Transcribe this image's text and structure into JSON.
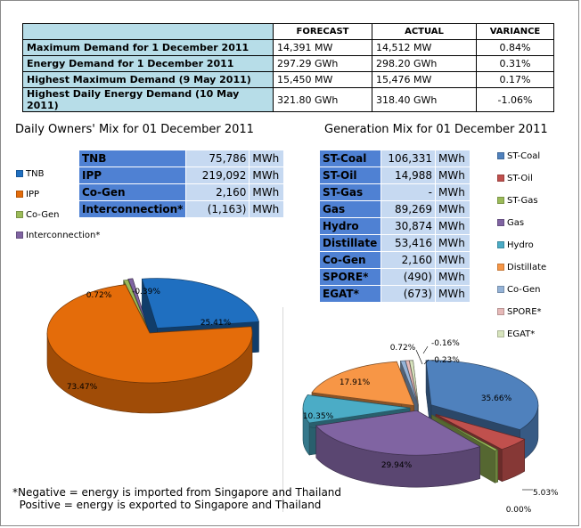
{
  "summary": {
    "headers": [
      "",
      "FORECAST",
      "ACTUAL",
      "VARIANCE"
    ],
    "rows": [
      {
        "label": "Maximum Demand for 1 December 2011",
        "forecast": "14,391  MW",
        "actual": "14,512  MW",
        "variance": "0.84%"
      },
      {
        "label": "Energy Demand for 1 December 2011",
        "forecast": "297.29  GWh",
        "actual": "298.20  GWh",
        "variance": "0.31%"
      },
      {
        "label": "Highest Maximum Demand (9 May 2011)",
        "forecast": "15,450  MW",
        "actual": "15,476  MW",
        "variance": "0.17%"
      },
      {
        "label": "Highest Daily Energy Demand (10 May 2011)",
        "forecast": "321.80  GWh",
        "actual": "318.40  GWh",
        "variance": "-1.06%"
      }
    ]
  },
  "owners": {
    "title": "Daily Owners' Mix for 01 December 2011",
    "rows": [
      {
        "name": "TNB",
        "value": "75,786",
        "unit": "MWh"
      },
      {
        "name": "IPP",
        "value": "219,092",
        "unit": "MWh"
      },
      {
        "name": "Co-Gen",
        "value": "2,160",
        "unit": "MWh"
      },
      {
        "name": "Interconnection*",
        "value": "(1,163)",
        "unit": "MWh"
      }
    ]
  },
  "generation": {
    "title": "Generation Mix for 01 December 2011",
    "rows": [
      {
        "name": "ST-Coal",
        "value": "106,331",
        "unit": "MWh"
      },
      {
        "name": "ST-Oil",
        "value": "14,988",
        "unit": "MWh"
      },
      {
        "name": "ST-Gas",
        "value": "-",
        "unit": "MWh"
      },
      {
        "name": "Gas",
        "value": "89,269",
        "unit": "MWh"
      },
      {
        "name": "Hydro",
        "value": "30,874",
        "unit": "MWh"
      },
      {
        "name": "Distillate",
        "value": "53,416",
        "unit": "MWh"
      },
      {
        "name": "Co-Gen",
        "value": "2,160",
        "unit": "MWh"
      },
      {
        "name": "SPORE*",
        "value": "(490)",
        "unit": "MWh"
      },
      {
        "name": "EGAT*",
        "value": "(673)",
        "unit": "MWh"
      }
    ]
  },
  "footnote": "*Negative = energy is imported from Singapore and Thailand\n  Positive = energy is exported to Singapore and Thailand",
  "chart_data": [
    {
      "type": "pie",
      "title": "Daily Owners' Mix for 01 December 2011",
      "legend_position": "left",
      "slices": [
        {
          "name": "TNB",
          "value": 25.41,
          "label": "25.41%",
          "color": "#1f6fc0"
        },
        {
          "name": "IPP",
          "value": 73.47,
          "label": "73.47%",
          "color": "#e46c0a"
        },
        {
          "name": "Co-Gen",
          "value": 0.72,
          "label": "0.72%",
          "color": "#9bbb59"
        },
        {
          "name": "Interconnection*",
          "value": -0.39,
          "label": "-0.39%",
          "color": "#8064a2"
        }
      ]
    },
    {
      "type": "pie",
      "title": "Generation Mix for 01 December 2011",
      "legend_position": "right",
      "slices": [
        {
          "name": "ST-Coal",
          "value": 35.66,
          "label": "35.66%",
          "color": "#4f81bd"
        },
        {
          "name": "ST-Oil",
          "value": 5.03,
          "label": "5.03%",
          "color": "#c0504d"
        },
        {
          "name": "ST-Gas",
          "value": 0.0,
          "label": "0.00%",
          "color": "#9bbb59"
        },
        {
          "name": "Gas",
          "value": 29.94,
          "label": "29.94%",
          "color": "#8064a2"
        },
        {
          "name": "Hydro",
          "value": 10.35,
          "label": "10.35%",
          "color": "#4bacc6"
        },
        {
          "name": "Distillate",
          "value": 17.91,
          "label": "17.91%",
          "color": "#f79646"
        },
        {
          "name": "Co-Gen",
          "value": 0.72,
          "label": "0.72%",
          "color": "#95b3d7"
        },
        {
          "name": "SPORE*",
          "value": -0.16,
          "label": "-0.16%",
          "color": "#e6b9b8"
        },
        {
          "name": "EGAT*",
          "value": -0.23,
          "label": "-0.23%",
          "color": "#d7e4bd"
        }
      ]
    }
  ]
}
